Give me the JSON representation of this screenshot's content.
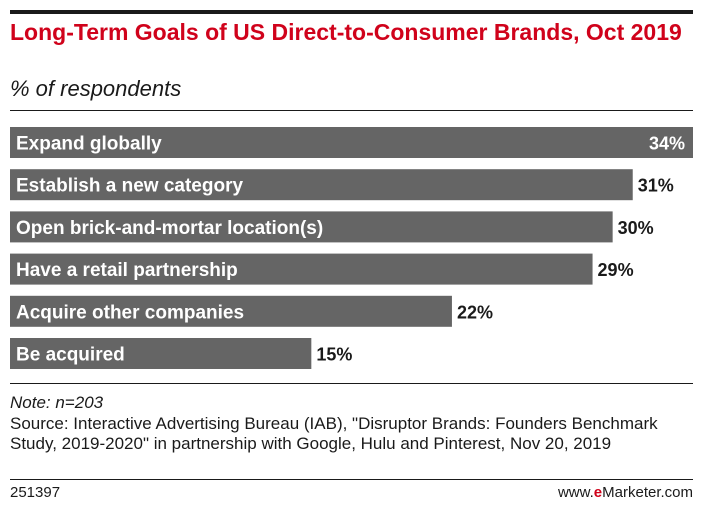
{
  "header": {
    "title": "Long-Term Goals of US Direct-to-Consumer Brands, Oct 2019",
    "subtitle": "% of respondents"
  },
  "colors": {
    "bar": "#656565",
    "title": "#d0021b",
    "text": "#1a1a1a"
  },
  "chart_data": {
    "type": "bar",
    "orientation": "horizontal",
    "title": "Long-Term Goals of US Direct-to-Consumer Brands, Oct 2019",
    "subtitle": "% of respondents",
    "categories": [
      "Expand globally",
      "Establish a new category",
      "Open brick-and-mortar location(s)",
      "Have a retail partnership",
      "Acquire other companies",
      "Be acquired"
    ],
    "values": [
      34,
      31,
      30,
      29,
      22,
      15
    ],
    "value_labels": [
      "34%",
      "31%",
      "30%",
      "29%",
      "22%",
      "15%"
    ],
    "unit": "%",
    "xlim": [
      0,
      34
    ],
    "grid": false
  },
  "footer": {
    "note": "Note: n=203",
    "source": "Source: Interactive Advertising Bureau (IAB), \"Disruptor Brands: Founders Benchmark Study, 2019-2020\" in partnership with Google, Hulu and Pinterest, Nov 20, 2019",
    "chart_id": "251397",
    "brand_prefix": "www.",
    "brand_e": "e",
    "brand_rest": "Marketer.com"
  }
}
